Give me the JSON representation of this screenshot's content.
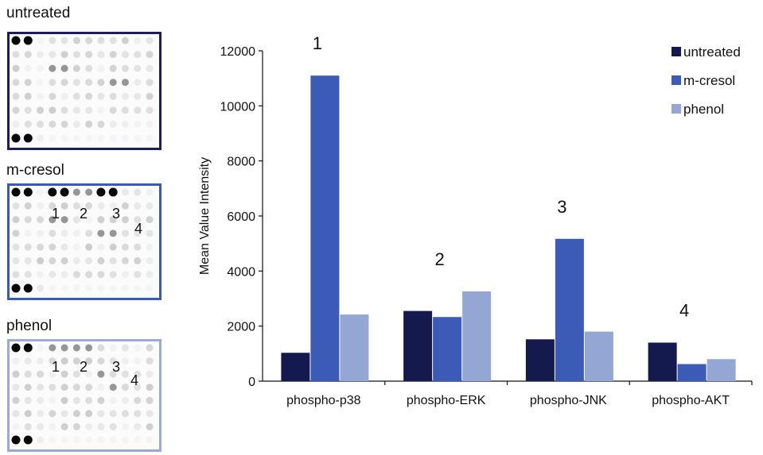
{
  "blots": [
    {
      "label": "untreated",
      "border": "#1a1f5c",
      "numbers": []
    },
    {
      "label": "m-cresol",
      "border": "#3a5bb5",
      "numbers": [
        "1",
        "2",
        "3",
        "4"
      ]
    },
    {
      "label": "phenol",
      "border": "#9aaad6",
      "numbers": [
        "1",
        "2",
        "3",
        "4"
      ]
    }
  ],
  "chart_data": {
    "type": "bar",
    "title": "",
    "xlabel": "",
    "ylabel": "Mean Value Intensity",
    "ylim": [
      0,
      12000
    ],
    "yticks": [
      "0",
      "2000",
      "4000",
      "6000",
      "8000",
      "10000",
      "12000"
    ],
    "categories": [
      "phospho-p38",
      "phospho-ERK",
      "phospho-JNK",
      "phospho-AKT"
    ],
    "group_labels": [
      "1",
      "2",
      "3",
      "4"
    ],
    "series": [
      {
        "name": "untreated",
        "color": "#141a4e",
        "values": [
          1030,
          2550,
          1520,
          1400
        ]
      },
      {
        "name": "m-cresol",
        "color": "#3b5bb7",
        "values": [
          11100,
          2330,
          5170,
          620
        ]
      },
      {
        "name": "phenol",
        "color": "#94a6d3",
        "values": [
          2420,
          3260,
          1800,
          800
        ]
      }
    ],
    "legend_position": "top-right",
    "grid": false
  }
}
